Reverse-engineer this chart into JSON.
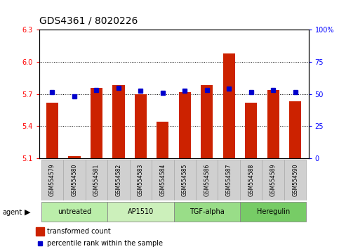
{
  "title": "GDS4361 / 8020226",
  "samples": [
    "GSM554579",
    "GSM554580",
    "GSM554581",
    "GSM554582",
    "GSM554583",
    "GSM554584",
    "GSM554585",
    "GSM554586",
    "GSM554587",
    "GSM554588",
    "GSM554589",
    "GSM554590"
  ],
  "red_values": [
    5.62,
    5.12,
    5.76,
    5.78,
    5.7,
    5.44,
    5.72,
    5.78,
    6.08,
    5.62,
    5.74,
    5.63
  ],
  "blue_values": [
    5.72,
    5.68,
    5.74,
    5.76,
    5.73,
    5.71,
    5.73,
    5.74,
    5.75,
    5.72,
    5.74,
    5.72
  ],
  "y_min": 5.1,
  "y_max": 6.3,
  "y_ticks_left": [
    5.1,
    5.4,
    5.7,
    6.0,
    6.3
  ],
  "y_ticks_right": [
    0,
    25,
    50,
    75,
    100
  ],
  "agent_groups": [
    {
      "label": "untreated",
      "start": 0,
      "end": 3
    },
    {
      "label": "AP1510",
      "start": 3,
      "end": 6
    },
    {
      "label": "TGF-alpha",
      "start": 6,
      "end": 9
    },
    {
      "label": "Heregulin",
      "start": 9,
      "end": 12
    }
  ],
  "group_colors": [
    "#bbeeaa",
    "#ccf0bb",
    "#99dd88",
    "#77cc66"
  ],
  "bar_color": "#cc2200",
  "dot_color": "#0000cc",
  "plot_bg": "#ffffff",
  "bar_width": 0.55,
  "title_fontsize": 10,
  "tick_fontsize": 7,
  "sample_fontsize": 5.5,
  "agent_fontsize": 7,
  "legend_fontsize": 7,
  "legend_items": [
    {
      "color": "#cc2200",
      "label": "transformed count"
    },
    {
      "color": "#0000cc",
      "label": "percentile rank within the sample"
    }
  ]
}
